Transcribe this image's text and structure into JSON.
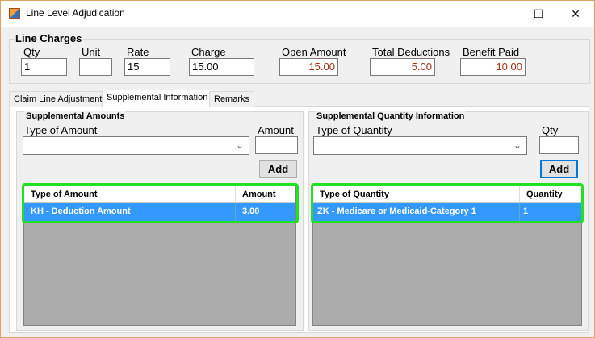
{
  "window": {
    "title": "Line Level Adjudication",
    "minimize": "—",
    "maximize": "☐",
    "close": "✕"
  },
  "line_charges": {
    "title": "Line Charges",
    "qty": {
      "label": "Qty",
      "value": "1"
    },
    "unit": {
      "label": "Unit",
      "value": ""
    },
    "rate": {
      "label": "Rate",
      "value": "15"
    },
    "charge": {
      "label": "Charge",
      "value": "15.00"
    },
    "open_amount": {
      "label": "Open Amount",
      "value": "15.00"
    },
    "total_deductions": {
      "label": "Total Deductions",
      "value": "5.00"
    },
    "benefit_paid": {
      "label": "Benefit Paid",
      "value": "10.00"
    }
  },
  "tabs": [
    {
      "label": "Claim Line Adjustment"
    },
    {
      "label": "Supplemental Information",
      "selected": true
    },
    {
      "label": "Remarks"
    }
  ],
  "amounts": {
    "title": "Supplemental Amounts",
    "type_label": "Type of Amount",
    "amount_label": "Amount",
    "add": "Add",
    "columns": [
      "Type of Amount",
      "Amount"
    ],
    "rows": [
      [
        "KH - Deduction Amount",
        "3.00"
      ]
    ]
  },
  "quantity": {
    "title": "Supplemental Quantity Information",
    "type_label": "Type of Quantity",
    "qty_label": "Qty",
    "add": "Add",
    "columns": [
      "Type of Quantity",
      "Quantity"
    ],
    "rows": [
      [
        "ZK - Medicare or Medicaid-Category 1",
        "1"
      ]
    ]
  },
  "colors": {
    "selection": "#3399ff",
    "highlight": "#22e022",
    "value_text": "#a0300f"
  }
}
